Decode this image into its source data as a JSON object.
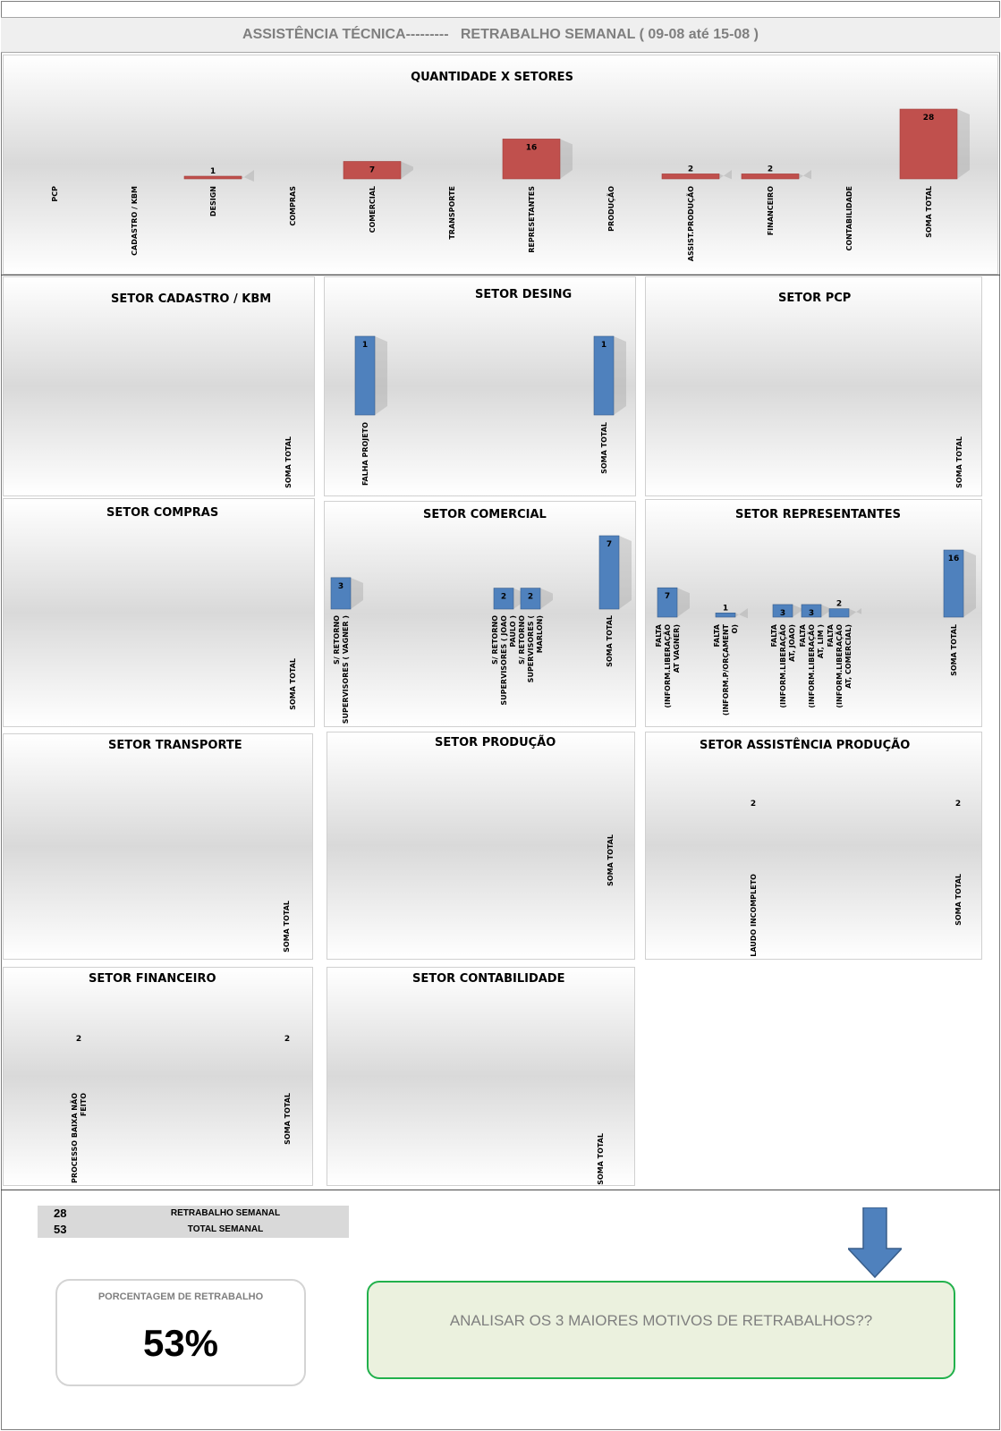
{
  "header": {
    "left": "ASSISTÊNCIA TÉCNICA---------",
    "right": "RETRABALHO SEMANAL ( 09-08 até 15-08 )"
  },
  "chart_data": [
    {
      "id": "main",
      "type": "bar",
      "title": "QUANTIDADE X SETORES",
      "categories": [
        "PCP",
        "CADASTRO / KBM",
        "DESIGN",
        "COMPRAS",
        "COMERCIAL",
        "TRANSPORTE",
        "REPRESETANTES",
        "PRODUÇÃO",
        "ASSIST.PRODUÇÃO",
        "FINANCEIRO",
        "CONTABILIDADE",
        "SOMA TOTAL"
      ],
      "values": [
        null,
        null,
        1,
        null,
        7,
        null,
        16,
        null,
        2,
        2,
        null,
        28
      ],
      "color": "#c0504d",
      "ymax": 28
    },
    {
      "id": "cadastro",
      "type": "bar",
      "title": "SETOR CADASTRO  / KBM",
      "categories": [
        "SOMA TOTAL"
      ],
      "values": [
        null
      ],
      "color": "#4f81bd"
    },
    {
      "id": "desing",
      "type": "bar",
      "title": "SETOR DESING",
      "categories": [
        "FALHA PROJETO",
        "SOMA TOTAL"
      ],
      "values": [
        1,
        1
      ],
      "color": "#4f81bd",
      "ymax": 1
    },
    {
      "id": "pcp",
      "type": "bar",
      "title": "SETOR PCP",
      "categories": [
        "SOMA TOTAL"
      ],
      "values": [
        null
      ],
      "color": "#4f81bd"
    },
    {
      "id": "compras",
      "type": "bar",
      "title": "SETOR COMPRAS",
      "categories": [
        "SOMA TOTAL"
      ],
      "values": [
        null
      ],
      "color": "#4f81bd"
    },
    {
      "id": "comercial",
      "type": "bar",
      "title": "SETOR COMERCIAL",
      "categories": [
        [
          "S/ RETORNO",
          "SUPERVISORES ( VAGNER )"
        ],
        [
          "S/ RETORNO",
          "SUPERVISORES ( JOAO",
          "PAULO )"
        ],
        [
          "S/ RETORNO",
          "SUPERVISORES (",
          "MARLON)"
        ],
        [
          "SOMA TOTAL"
        ]
      ],
      "values": [
        3,
        2,
        2,
        7
      ],
      "color": "#4f81bd",
      "ymax": 7
    },
    {
      "id": "representantes",
      "type": "bar",
      "title": "SETOR REPRESENTANTES",
      "categories": [
        [
          "FALTA",
          "(INFORM.LIBERAÇÃO",
          "AT VAGNER)"
        ],
        [
          "FALTA",
          "(INFORM.P/ORÇAMENT",
          "O)"
        ],
        [
          "FALTA",
          "(INFORM.LIBERAÇÃO",
          "AT, JOAO)"
        ],
        [
          "FALTA",
          "(INFORM.LIBERAÇÃO",
          "AT, LIM )"
        ],
        [
          "FALTA",
          "(INFORM.LIBERAÇÃO",
          "AT, COMERCIAL)"
        ],
        [
          "SOMA TOTAL"
        ]
      ],
      "values": [
        7,
        1,
        3,
        3,
        2,
        16
      ],
      "color": "#4f81bd",
      "ymax": 16
    },
    {
      "id": "transporte",
      "type": "bar",
      "title": "SETOR TRANSPORTE",
      "categories": [
        "SOMA TOTAL"
      ],
      "values": [
        null
      ],
      "color": "#4f81bd"
    },
    {
      "id": "producao",
      "type": "bar",
      "title": "SETOR PRODUÇÃO",
      "categories": [
        "SOMA TOTAL"
      ],
      "values": [
        null
      ],
      "color": "#4f81bd"
    },
    {
      "id": "assist",
      "type": "bar",
      "title": "SETOR ASSISTÊNCIA PRODUÇÃO",
      "categories": [
        "LAUDO INCOMPLETO",
        "SOMA TOTAL"
      ],
      "values": [
        2,
        2
      ],
      "color": "#4f81bd"
    },
    {
      "id": "financeiro",
      "type": "bar",
      "title": "SETOR FINANCEIRO",
      "categories": [
        [
          "PROCESSO BAIXA NÃO",
          "FEITO"
        ],
        [
          "SOMA TOTAL"
        ]
      ],
      "values": [
        2,
        2
      ],
      "color": "#4f81bd"
    },
    {
      "id": "contabilidade",
      "type": "bar",
      "title": "SETOR CONTABILIDADE",
      "categories": [
        "SOMA TOTAL"
      ],
      "values": [
        null
      ],
      "color": "#4f81bd"
    }
  ],
  "summary": {
    "rows": [
      {
        "value": "28",
        "label": "RETRABALHO SEMANAL"
      },
      {
        "value": "53",
        "label": "TOTAL  SEMANAL"
      }
    ]
  },
  "percentage": {
    "title": "PORCENTAGEM DE RETRABALHO",
    "value": "53%"
  },
  "action": {
    "text": "ANALISAR OS 3 MAIORES  MOTIVOS DE RETRABALHOS??"
  },
  "colors": {
    "main_bar": "#c0504d",
    "sector_bar": "#4f81bd",
    "action_border": "#22b14c",
    "action_fill": "#ebf1de",
    "arrow": "#4f81bd"
  }
}
